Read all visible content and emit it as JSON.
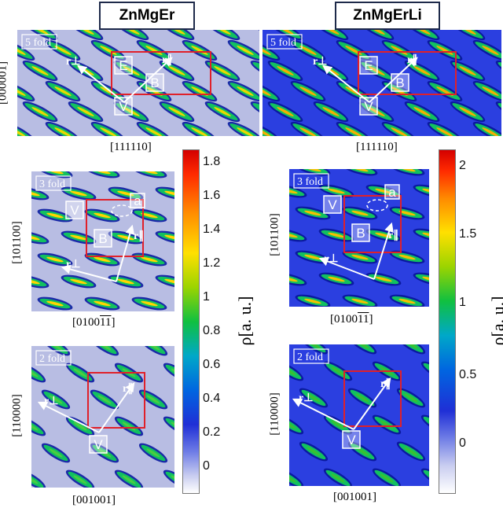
{
  "titles": {
    "left": "ZnMgEr",
    "right": "ZnMgErLi"
  },
  "panels": {
    "fivefold": {
      "fold": "5 fold",
      "xlabel": "[111110]",
      "ylabel": "[000001]"
    },
    "threefold": {
      "fold": "3 fold",
      "xlabel_main": "[0100",
      "xlabel_bars": "11",
      "xlabel_end": "]",
      "ylabel": "[101100]"
    },
    "twofold": {
      "fold": "2 fold",
      "xlabel": "[001001]",
      "ylabel": "[110000]"
    }
  },
  "markers": {
    "E": "E",
    "B": "B",
    "V": "V",
    "a": "a",
    "r_perp": "r⊥",
    "r_par": "r∥"
  },
  "colorbars": {
    "left": {
      "ticks": [
        "1.8",
        "1.6",
        "1.4",
        "1.2",
        "1",
        "0.8",
        "0.6",
        "0.4",
        "0.2",
        "0"
      ],
      "label": "ρ[a. u.]"
    },
    "right": {
      "ticks": [
        "2",
        "1.5",
        "1",
        "0.5",
        "0"
      ],
      "label": "ρ[a. u.]"
    }
  },
  "colors": {
    "left_bg": "#b8bde3",
    "right_bg": "#2b3fe0",
    "box": "#e0202a",
    "arrow": "#ffffff"
  }
}
